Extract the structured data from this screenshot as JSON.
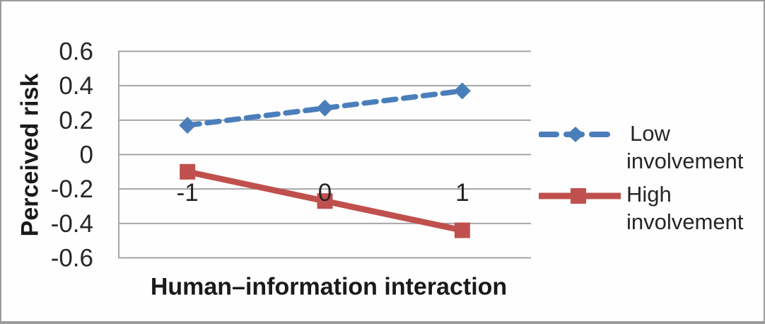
{
  "chart_data": {
    "type": "line",
    "categories": [
      "-1",
      "0",
      "1"
    ],
    "series": [
      {
        "name": "Low involvement",
        "values": [
          0.17,
          0.27,
          0.37
        ],
        "color": "#4a7ebb",
        "style": "dashed",
        "marker": "diamond"
      },
      {
        "name": "High involvement",
        "values": [
          -0.1,
          -0.27,
          -0.44
        ],
        "color": "#c0504d",
        "style": "solid",
        "marker": "square"
      }
    ],
    "xlabel": "Human–information interaction",
    "ylabel": "Perceived risk",
    "ylim": [
      -0.6,
      0.6
    ],
    "yticks": [
      0.6,
      0.4,
      0.2,
      0,
      -0.2,
      -0.4,
      -0.6
    ],
    "grid": true,
    "legend_position": "right",
    "grid_color": "#a6a6a6",
    "axis_color": "#a6a6a6",
    "tick_label_color": "#262626"
  },
  "legend": {
    "items": [
      {
        "line1": "Low",
        "line2": "involvement",
        "color": "#4a7ebb",
        "style": "dashed",
        "marker": "diamond"
      },
      {
        "line1": "High",
        "line2": "involvement",
        "color": "#c0504d",
        "style": "solid",
        "marker": "square"
      }
    ]
  }
}
